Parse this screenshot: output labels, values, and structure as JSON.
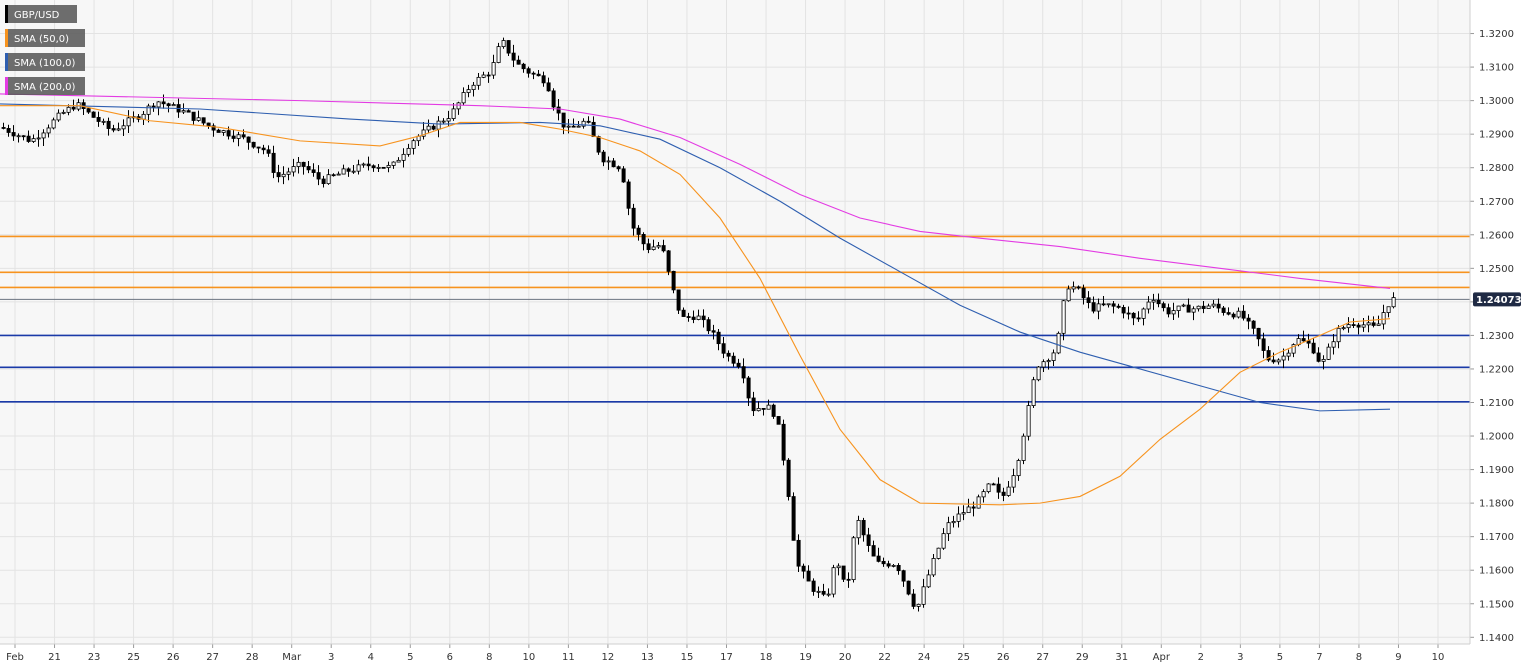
{
  "chart_data": {
    "type": "candlestick",
    "instrument": "GBP/USD",
    "legend": [
      {
        "label": "GBP/USD",
        "color": "#000000"
      },
      {
        "label": "SMA (50,0)",
        "color": "#f7931e"
      },
      {
        "label": "SMA (100,0)",
        "color": "#2f5fb0"
      },
      {
        "label": "SMA (200,0)",
        "color": "#e33be3"
      }
    ],
    "y_ticks": [
      "1.3200",
      "1.3100",
      "1.3000",
      "1.2900",
      "1.2800",
      "1.2700",
      "1.2600",
      "1.2500",
      "1.2400",
      "1.2300",
      "1.2200",
      "1.2100",
      "1.2000",
      "1.1900",
      "1.1800",
      "1.1700",
      "1.1600",
      "1.1500",
      "1.1400"
    ],
    "ylim": [
      1.138,
      1.33
    ],
    "x_ticks": [
      "Feb",
      "21",
      "23",
      "25",
      "26",
      "27",
      "28",
      "Mar",
      "3",
      "4",
      "5",
      "6",
      "8",
      "10",
      "11",
      "12",
      "13",
      "15",
      "17",
      "18",
      "19",
      "20",
      "22",
      "24",
      "25",
      "26",
      "27",
      "29",
      "31",
      "Apr",
      "2",
      "3",
      "5",
      "7",
      "8",
      "9",
      "10"
    ],
    "current_price": "1.24073",
    "current_price_value": 1.24073,
    "resistance_levels": [
      1.2595,
      1.2488,
      1.2443
    ],
    "support_levels": [
      1.23,
      1.2205,
      1.2102
    ],
    "colors": {
      "resistance": "#f7931e",
      "support": "#1a3aa8",
      "sma50": "#f7931e",
      "sma100": "#2f5fb0",
      "sma200": "#e33be3",
      "grid": "#e3e3e3",
      "bg": "#f7f7f7",
      "price_label": "#1f2a44"
    },
    "sma50": [
      [
        0,
        1.2985
      ],
      [
        80,
        1.2985
      ],
      [
        150,
        1.294
      ],
      [
        220,
        1.292
      ],
      [
        300,
        1.288
      ],
      [
        380,
        1.2865
      ],
      [
        420,
        1.2895
      ],
      [
        460,
        1.2935
      ],
      [
        520,
        1.2935
      ],
      [
        560,
        1.2915
      ],
      [
        600,
        1.289
      ],
      [
        640,
        1.285
      ],
      [
        680,
        1.278
      ],
      [
        720,
        1.265
      ],
      [
        760,
        1.247
      ],
      [
        800,
        1.224
      ],
      [
        840,
        1.202
      ],
      [
        880,
        1.187
      ],
      [
        920,
        1.18
      ],
      [
        1000,
        1.1795
      ],
      [
        1040,
        1.18
      ],
      [
        1080,
        1.182
      ],
      [
        1120,
        1.188
      ],
      [
        1160,
        1.199
      ],
      [
        1200,
        1.208
      ],
      [
        1240,
        1.219
      ],
      [
        1280,
        1.225
      ],
      [
        1320,
        1.23
      ],
      [
        1350,
        1.234
      ],
      [
        1390,
        1.235
      ]
    ],
    "sma100": [
      [
        0,
        1.299
      ],
      [
        200,
        1.2975
      ],
      [
        350,
        1.2945
      ],
      [
        440,
        1.293
      ],
      [
        540,
        1.2935
      ],
      [
        600,
        1.2925
      ],
      [
        660,
        1.2885
      ],
      [
        720,
        1.28
      ],
      [
        780,
        1.27
      ],
      [
        840,
        1.259
      ],
      [
        900,
        1.249
      ],
      [
        960,
        1.239
      ],
      [
        1020,
        1.231
      ],
      [
        1080,
        1.225
      ],
      [
        1140,
        1.22
      ],
      [
        1200,
        1.215
      ],
      [
        1260,
        1.21
      ],
      [
        1320,
        1.2075
      ],
      [
        1390,
        1.208
      ]
    ],
    "sma200": [
      [
        0,
        1.302
      ],
      [
        300,
        1.3
      ],
      [
        480,
        1.2985
      ],
      [
        560,
        1.2975
      ],
      [
        620,
        1.2945
      ],
      [
        680,
        1.289
      ],
      [
        740,
        1.281
      ],
      [
        800,
        1.272
      ],
      [
        860,
        1.265
      ],
      [
        920,
        1.261
      ],
      [
        980,
        1.259
      ],
      [
        1060,
        1.2565
      ],
      [
        1140,
        1.253
      ],
      [
        1220,
        1.25
      ],
      [
        1300,
        1.247
      ],
      [
        1390,
        1.244
      ]
    ],
    "candle_path": [
      [
        0,
        1.292
      ],
      [
        30,
        1.288
      ],
      [
        60,
        1.296
      ],
      [
        75,
        1.299
      ],
      [
        110,
        1.291
      ],
      [
        140,
        1.296
      ],
      [
        155,
        1.3
      ],
      [
        180,
        1.297
      ],
      [
        210,
        1.292
      ],
      [
        240,
        1.289
      ],
      [
        265,
        1.285
      ],
      [
        275,
        1.277
      ],
      [
        300,
        1.281
      ],
      [
        320,
        1.276
      ],
      [
        345,
        1.279
      ],
      [
        370,
        1.281
      ],
      [
        390,
        1.28
      ],
      [
        410,
        1.288
      ],
      [
        425,
        1.291
      ],
      [
        450,
        1.296
      ],
      [
        470,
        1.305
      ],
      [
        490,
        1.309
      ],
      [
        500,
        1.318
      ],
      [
        515,
        1.311
      ],
      [
        530,
        1.308
      ],
      [
        545,
        1.306
      ],
      [
        552,
        1.299
      ],
      [
        565,
        1.291
      ],
      [
        585,
        1.294
      ],
      [
        600,
        1.283
      ],
      [
        620,
        1.28
      ],
      [
        630,
        1.263
      ],
      [
        645,
        1.256
      ],
      [
        660,
        1.257
      ],
      [
        670,
        1.245
      ],
      [
        680,
        1.235
      ],
      [
        695,
        1.236
      ],
      [
        710,
        1.231
      ],
      [
        725,
        1.224
      ],
      [
        740,
        1.221
      ],
      [
        750,
        1.208
      ],
      [
        765,
        1.209
      ],
      [
        775,
        1.206
      ],
      [
        785,
        1.188
      ],
      [
        795,
        1.162
      ],
      [
        810,
        1.155
      ],
      [
        825,
        1.151
      ],
      [
        835,
        1.164
      ],
      [
        845,
        1.153
      ],
      [
        855,
        1.176
      ],
      [
        865,
        1.168
      ],
      [
        875,
        1.162
      ],
      [
        885,
        1.162
      ],
      [
        895,
        1.162
      ],
      [
        905,
        1.155
      ],
      [
        915,
        1.148
      ],
      [
        925,
        1.157
      ],
      [
        935,
        1.165
      ],
      [
        945,
        1.173
      ],
      [
        960,
        1.177
      ],
      [
        975,
        1.18
      ],
      [
        990,
        1.186
      ],
      [
        1000,
        1.181
      ],
      [
        1015,
        1.191
      ],
      [
        1025,
        1.205
      ],
      [
        1035,
        1.221
      ],
      [
        1045,
        1.223
      ],
      [
        1055,
        1.226
      ],
      [
        1065,
        1.245
      ],
      [
        1075,
        1.244
      ],
      [
        1090,
        1.238
      ],
      [
        1105,
        1.239
      ],
      [
        1120,
        1.238
      ],
      [
        1135,
        1.234
      ],
      [
        1150,
        1.242
      ],
      [
        1165,
        1.237
      ],
      [
        1180,
        1.238
      ],
      [
        1195,
        1.238
      ],
      [
        1210,
        1.239
      ],
      [
        1225,
        1.237
      ],
      [
        1240,
        1.236
      ],
      [
        1255,
        1.23
      ],
      [
        1265,
        1.223
      ],
      [
        1280,
        1.223
      ],
      [
        1295,
        1.229
      ],
      [
        1310,
        1.227
      ],
      [
        1320,
        1.221
      ],
      [
        1335,
        1.231
      ],
      [
        1350,
        1.234
      ],
      [
        1365,
        1.233
      ],
      [
        1375,
        1.232
      ],
      [
        1385,
        1.239
      ],
      [
        1392,
        1.2407
      ]
    ]
  }
}
